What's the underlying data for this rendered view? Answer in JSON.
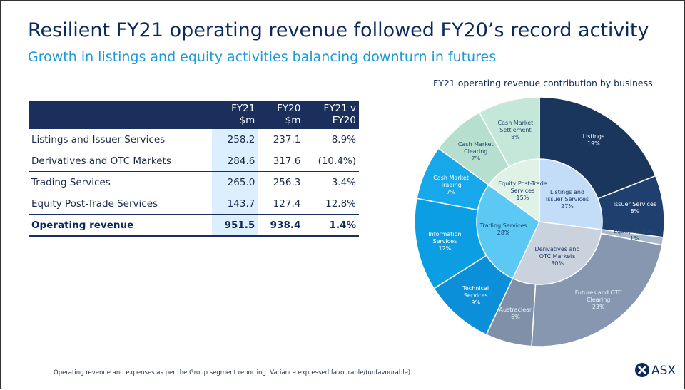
{
  "title": "Resilient FY21 operating revenue followed FY20’s record activity",
  "subtitle": "Growth in listings and equity activities balancing downturn in futures",
  "table": {
    "headers": [
      [
        "FY21",
        "$m"
      ],
      [
        "FY20",
        "$m"
      ],
      [
        "FY21 v",
        "FY20"
      ]
    ],
    "rows": [
      [
        "Listings and Issuer Services",
        "258.2",
        "237.1",
        "8.9%"
      ],
      [
        "Derivatives and OTC Markets",
        "284.6",
        "317.6",
        "(10.4%)"
      ],
      [
        "Trading Services",
        "265.0",
        "256.3",
        "3.4%"
      ],
      [
        "Equity Post-Trade Services",
        "143.7",
        "127.4",
        "12.8%"
      ],
      [
        "Operating revenue",
        "951.5",
        "938.4",
        "1.4%"
      ]
    ]
  },
  "chart_data": {
    "type": "sunburst",
    "title": "FY21 operating revenue contribution by business",
    "inner": {
      "categories": [
        "Listings and Issuer Services",
        "Derivatives and OTC Markets",
        "Trading Services",
        "Equity Post-Trade Services"
      ],
      "values": [
        27,
        30,
        28,
        15
      ],
      "value_labels": [
        "27%",
        "30%",
        "28%",
        "15%"
      ],
      "colors": [
        "#c3dcf7",
        "#c9d2dd",
        "#5cc9f5",
        "#e0f1e6"
      ]
    },
    "outer": {
      "categories": [
        "Listings",
        "Issuer Services",
        "Equity Options",
        "Futures and OTC Clearing",
        "Austraclear",
        "Technical Services",
        "Information Services",
        "Cash Market Trading",
        "Cash Market Clearing",
        "Cash Market Settlement"
      ],
      "values": [
        19,
        8,
        1,
        23,
        6,
        9,
        12,
        7,
        7,
        8
      ],
      "value_labels": [
        "19%",
        "8%",
        "1%",
        "23%",
        "6%",
        "9%",
        "12%",
        "7%",
        "7%",
        "8%"
      ],
      "colors": [
        "#1b365d",
        "#1f3f6f",
        "#a9b8cc",
        "#8797b0",
        "#7f90a8",
        "#0a8fd8",
        "#0b9ee3",
        "#16a8ea",
        "#b7dfcf",
        "#c4e7da"
      ]
    }
  },
  "footnote": "Operating revenue and expenses as per the Group segment reporting. Variance expressed favourable/(unfavourable).",
  "logo": "ASX"
}
